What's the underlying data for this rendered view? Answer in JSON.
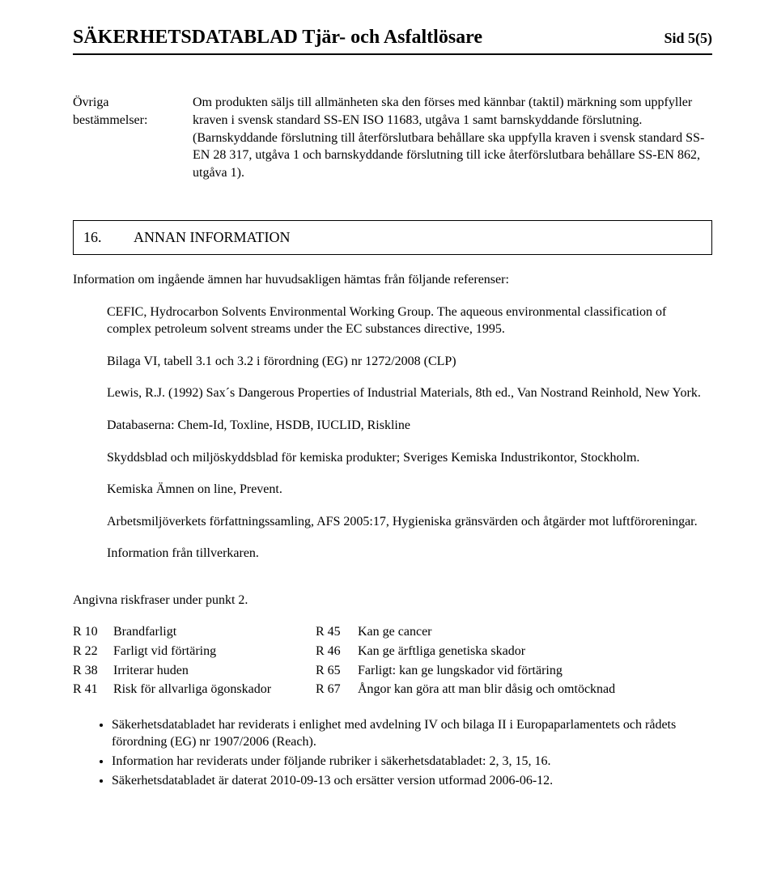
{
  "header": {
    "title": "SÄKERHETSDATABLAD  Tjär- och Asfaltlösare",
    "page": "Sid 5(5)"
  },
  "other_provisions": {
    "label": "Övriga bestämmelser:",
    "text": "Om produkten säljs till allmänheten ska den förses med kännbar (taktil) märkning som uppfyller kraven i svensk standard SS-EN ISO 11683, utgåva 1 samt barnskyddande förslutning. (Barnskyddande förslutning till återförslutbara behållare ska uppfylla kraven i svensk standard SS-EN 28 317, utgåva 1 och barnskyddande förslutning till icke återförslutbara behållare SS-EN 862, utgåva 1)."
  },
  "section16": {
    "number": "16.",
    "title": "ANNAN INFORMATION",
    "intro": "Information om ingående ämnen har huvudsakligen hämtas från följande referenser:",
    "paras": [
      "CEFIC, Hydrocarbon Solvents Environmental Working Group. The aqueous environmental classification of complex petroleum solvent streams under the EC substances directive, 1995.",
      "Bilaga VI, tabell 3.1 och 3.2 i förordning (EG) nr 1272/2008 (CLP)",
      "Lewis, R.J. (1992) Sax´s Dangerous Properties of Industrial Materials, 8th ed., Van Nostrand Reinhold, New York.",
      "Databaserna: Chem-Id, Toxline, HSDB, IUCLID, Riskline",
      "Skyddsblad och miljöskyddsblad för kemiska produkter; Sveriges Kemiska Industrikontor, Stockholm.",
      "Kemiska Ämnen on line, Prevent.",
      "Arbetsmiljöverkets författningssamling, AFS 2005:17, Hygieniska gränsvärden och åtgärder mot luftföroreningar.",
      "Information från tillverkaren."
    ]
  },
  "risk": {
    "header": "Angivna riskfraser under punkt 2.",
    "rows": [
      {
        "c1": "R 10",
        "c2": "Brandfarligt",
        "c3": "R 45",
        "c4": "Kan ge cancer"
      },
      {
        "c1": "R 22",
        "c2": "Farligt vid förtäring",
        "c3": "R 46",
        "c4": "Kan ge ärftliga genetiska skador"
      },
      {
        "c1": "R 38",
        "c2": "Irriterar huden",
        "c3": "R 65",
        "c4": "Farligt: kan ge lungskador vid förtäring"
      },
      {
        "c1": "R 41",
        "c2": "Risk för allvarliga ögonskador",
        "c3": "R 67",
        "c4": "Ångor kan göra att man blir dåsig och omtöcknad"
      }
    ]
  },
  "bullets": [
    "Säkerhetsdatabladet har reviderats i enlighet med avdelning IV och bilaga II i Europaparlamentets och rådets förordning (EG) nr 1907/2006 (Reach).",
    "Information har reviderats under följande rubriker i säkerhetsdatabladet: 2, 3, 15, 16.",
    "Säkerhetsdatabladet är daterat 2010-09-13  och ersätter version utformad 2006-06-12."
  ]
}
